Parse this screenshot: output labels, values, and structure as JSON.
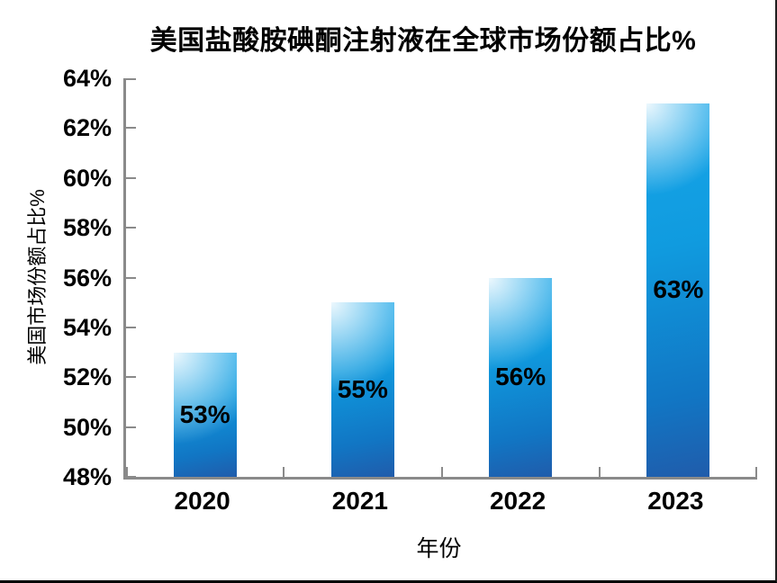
{
  "chart_data": {
    "type": "bar",
    "title": "美国盐酸胺碘酮注射液在全球市场份额占比%",
    "xlabel": "年份",
    "ylabel": "美国市场份额占比%",
    "categories": [
      "2020",
      "2021",
      "2022",
      "2023"
    ],
    "values": [
      53,
      55,
      56,
      63
    ],
    "data_labels": [
      "53%",
      "55%",
      "56%",
      "63%"
    ],
    "ylim": [
      48,
      64
    ],
    "ytick_step": 2,
    "ytick_labels": [
      "48%",
      "50%",
      "52%",
      "54%",
      "56%",
      "58%",
      "60%",
      "62%",
      "64%"
    ],
    "grid": false,
    "legend": "none",
    "tick_direction": "in"
  },
  "colors": {
    "bar_main": "#13a0e2",
    "bar_dark": "#205cab",
    "bar_highlight": "#eaf4fb",
    "axis": "#8a8a8a",
    "text": "#000000",
    "frame_border": "#1f1f1f",
    "background": "#ffffff"
  }
}
